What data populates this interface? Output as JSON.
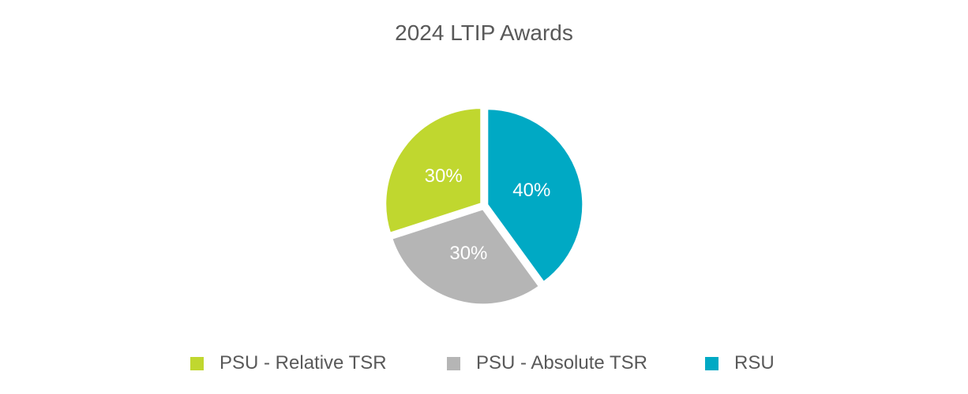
{
  "chart_data": {
    "type": "pie",
    "title": "2024 LTIP Awards",
    "slices": [
      {
        "name": "RSU",
        "value": 40,
        "label": "40%",
        "color": "#00A9C4"
      },
      {
        "name": "PSU - Absolute TSR",
        "value": 30,
        "label": "30%",
        "color": "#B5B5B5"
      },
      {
        "name": "PSU - Relative TSR",
        "value": 30,
        "label": "30%",
        "color": "#C0D72F"
      }
    ],
    "legend": {
      "placement": "bottom",
      "entries": [
        {
          "name": "PSU - Relative TSR",
          "color": "#C0D72F"
        },
        {
          "name": "PSU - Absolute TSR",
          "color": "#B5B5B5"
        },
        {
          "name": "RSU",
          "color": "#00A9C4"
        }
      ]
    }
  }
}
